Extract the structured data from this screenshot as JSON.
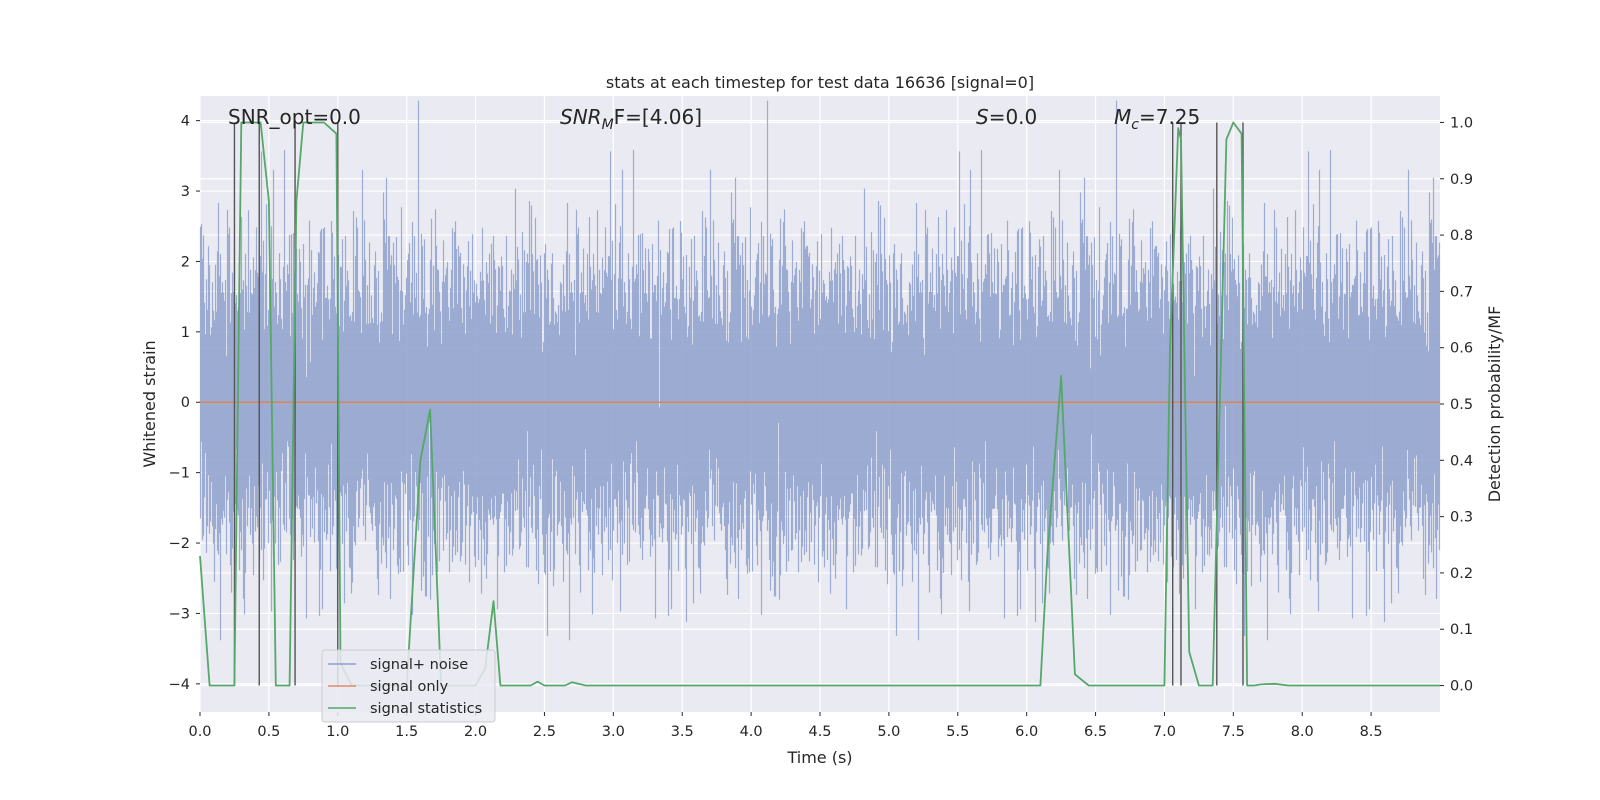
{
  "chart_data": {
    "type": "line",
    "title": "stats at each timestep for test data 16636 [signal=0]",
    "xlabel": "Time (s)",
    "ylabel": "Whitened strain",
    "y2label": "Detection probability/MF",
    "xlim": [
      0,
      9
    ],
    "ylim": [
      -4.4,
      4.35
    ],
    "y2lim": [
      -0.047,
      1.047
    ],
    "x_ticks": [
      "0.0",
      "0.5",
      "1.0",
      "1.5",
      "2.0",
      "2.5",
      "3.0",
      "3.5",
      "4.0",
      "4.5",
      "5.0",
      "5.5",
      "6.0",
      "6.5",
      "7.0",
      "7.5",
      "8.0",
      "8.5"
    ],
    "y_ticks": [
      "4",
      "3",
      "2",
      "1",
      "0",
      "−1",
      "−2",
      "−3",
      "−4"
    ],
    "y2_ticks": [
      "1.0",
      "0.9",
      "0.8",
      "0.7",
      "0.6",
      "0.5",
      "0.4",
      "0.3",
      "0.2",
      "0.1",
      "0.0"
    ],
    "annotations": {
      "snr_opt": "SNR_opt=0.0",
      "snr_mf_sym": "SNR",
      "snr_mf_sub": "M",
      "snr_mf_rest": "F=[4.06]",
      "s_sym": "S",
      "s_rest": "=0.0",
      "mc_sym": "M",
      "mc_sub": "c",
      "mc_rest": "=7.25"
    },
    "legend": {
      "position": "lower-left",
      "entries": [
        {
          "label": "signal+ noise",
          "color": "#8da0cb"
        },
        {
          "label": "signal only",
          "color": "#e28a66"
        },
        {
          "label": "signal statistics",
          "color": "#55a868"
        }
      ]
    },
    "noise_series": {
      "name": "signal+ noise",
      "color": "#8da0cb",
      "sample_rate": 2048,
      "std": 1.0,
      "description": "dense whitened strain noise from 0 to 9 s"
    },
    "signal_only": {
      "name": "signal only",
      "color": "#dd8452",
      "value": 0.0
    },
    "statistics_series": {
      "name": "signal statistics",
      "color": "#55a868",
      "x": [
        0.0,
        0.07,
        0.1,
        0.2,
        0.25,
        0.3,
        0.4,
        0.44,
        0.5,
        0.55,
        0.6,
        0.62,
        0.65,
        0.7,
        0.75,
        0.8,
        0.9,
        0.99,
        1.02,
        1.1,
        1.2,
        1.4,
        1.5,
        1.6,
        1.67,
        1.75,
        1.85,
        2.0,
        2.07,
        2.13,
        2.18,
        2.25,
        2.4,
        2.45,
        2.5,
        2.6,
        2.65,
        2.7,
        2.8,
        3.0,
        3.5,
        4.0,
        5.0,
        6.0,
        6.1,
        6.15,
        6.25,
        6.35,
        6.45,
        6.5,
        6.6,
        6.8,
        7.0,
        7.04,
        7.1,
        7.12,
        7.18,
        7.25,
        7.35,
        7.45,
        7.5,
        7.56,
        7.6,
        7.65,
        7.7,
        7.8,
        7.9,
        8.0,
        8.5,
        9.0
      ],
      "y": [
        0.23,
        0.0,
        0.0,
        0.0,
        0.0,
        1.0,
        1.0,
        1.0,
        0.86,
        0.0,
        0.0,
        0.0,
        0.0,
        0.86,
        1.0,
        1.0,
        1.0,
        0.98,
        0.04,
        0.0,
        0.0,
        0.0,
        0.0,
        0.4,
        0.49,
        0.0,
        0.0,
        0.0,
        0.03,
        0.15,
        0.0,
        0.0,
        0.0,
        0.007,
        0.0,
        0.0,
        0.0,
        0.006,
        0.0,
        0.0,
        0.0,
        0.0,
        0.0,
        0.0,
        0.0,
        0.23,
        0.55,
        0.02,
        0.0,
        0.0,
        0.0,
        0.0,
        0.0,
        0.6,
        0.99,
        0.97,
        0.06,
        0.0,
        0.0,
        0.97,
        1.0,
        0.98,
        0.0,
        0.0,
        0.002,
        0.003,
        0.0,
        0.0,
        0.0,
        0.0
      ]
    },
    "vertical_lines": {
      "color": "#555555",
      "x": [
        0.25,
        0.43,
        0.69,
        1.0,
        7.06,
        7.12,
        7.38,
        7.57
      ]
    }
  }
}
